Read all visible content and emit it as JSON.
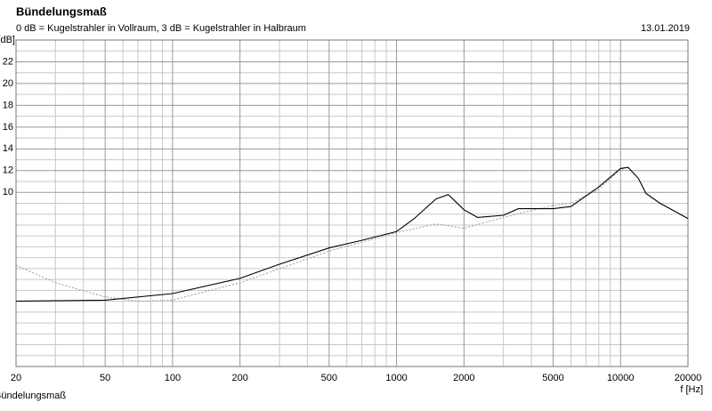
{
  "chart_data": {
    "type": "line",
    "title": "Bündelungsmaß",
    "subtitle": "0 dB = Kugelstrahler in Vollraum, 3 dB = Kugelstrahler in Halbraum",
    "date": "13.01.2019",
    "y_label": "[dB]",
    "x_label": "f [Hz]",
    "footer": "Bündelungsmaß",
    "log_x": true,
    "xlim": [
      20,
      20000
    ],
    "ylim": [
      -6,
      24
    ],
    "xticks": [
      20,
      50,
      100,
      200,
      500,
      1000,
      2000,
      5000,
      10000,
      20000
    ],
    "xgrid": [
      30,
      40,
      60,
      70,
      80,
      90,
      300,
      400,
      600,
      700,
      800,
      900,
      3000,
      4000,
      6000,
      7000,
      8000,
      9000
    ],
    "yticks": [
      10,
      12,
      14,
      16,
      18,
      20,
      22
    ],
    "ygrid": [
      -5,
      -4,
      -3,
      -2,
      -1,
      0,
      1,
      2,
      3,
      4,
      5,
      6,
      7,
      8,
      9,
      11,
      13,
      15,
      17,
      19,
      21,
      23
    ],
    "grid": true,
    "series": [
      {
        "color": "#000000",
        "dash": false,
        "x": [
          20,
          50,
          100,
          200,
          300,
          500,
          700,
          1000,
          1200,
          1500,
          1700,
          2000,
          2300,
          3000,
          3500,
          5000,
          6000,
          8000,
          10000,
          10800,
          12000,
          13000,
          15000,
          20000
        ],
        "values": [
          0,
          0.1,
          0.7,
          2.1,
          3.4,
          4.9,
          5.6,
          6.4,
          7.6,
          9.4,
          9.8,
          8.4,
          7.7,
          7.9,
          8.5,
          8.5,
          8.7,
          10.5,
          12.2,
          12.3,
          11.3,
          9.9,
          9.0,
          7.6
        ]
      },
      {
        "color": "#999999",
        "dash": true,
        "x": [
          20,
          30,
          50,
          70,
          100,
          200,
          500,
          1000,
          1500,
          2000,
          3000,
          5000,
          6000,
          8000,
          10000,
          10800,
          12000,
          13000,
          15000,
          20000
        ],
        "values": [
          3.3,
          1.7,
          0.4,
          0,
          0.1,
          1.7,
          4.6,
          6.3,
          7.1,
          6.7,
          7.7,
          8.8,
          9.0,
          10.3,
          12.1,
          12.3,
          11.3,
          9.9,
          9.0,
          7.6
        ]
      }
    ]
  }
}
